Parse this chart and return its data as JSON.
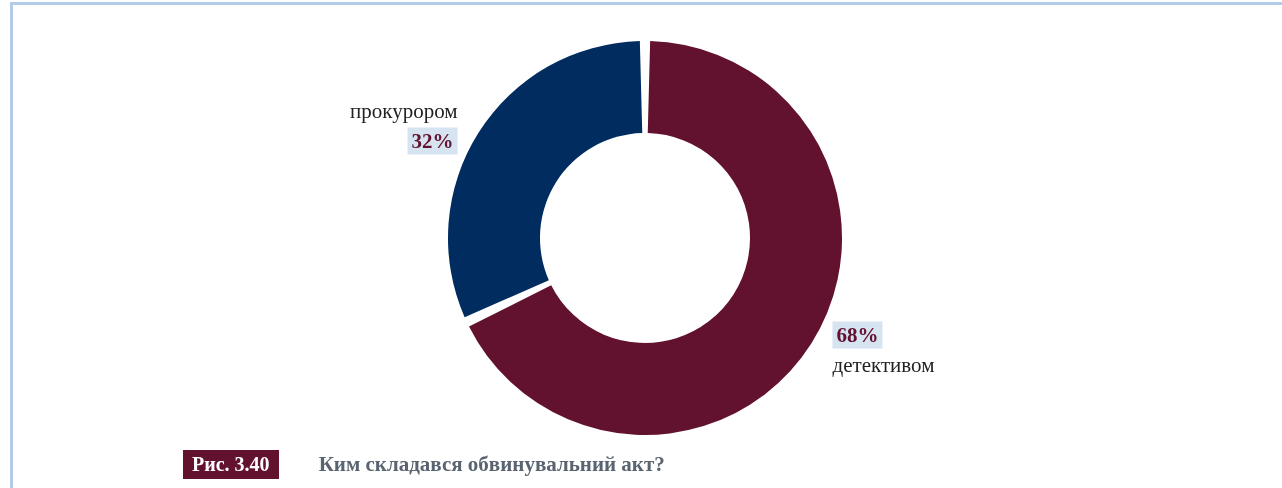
{
  "chart_data": {
    "type": "donut",
    "title": "Ким складався обвинувальний акт?",
    "annotations": [
      "Рис. 3.40"
    ],
    "categories": [
      "детективом",
      "прокурором"
    ],
    "values": [
      68,
      32
    ],
    "colors": [
      "#62112f",
      "#002c60"
    ],
    "value_labels": [
      "68%",
      "32%"
    ],
    "legend": false
  }
}
